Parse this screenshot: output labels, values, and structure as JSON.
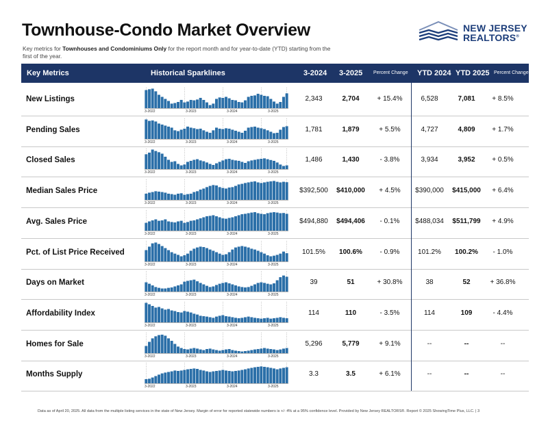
{
  "header": {
    "title": "Townhouse-Condo Market Overview",
    "subtitle_pre": "Key metrics for ",
    "subtitle_bold": "Townhouses and Condominiums Only",
    "subtitle_post": " for the report month and for year-to-date (YTD) starting from the first of the year."
  },
  "logo": {
    "line1": "NEW JERSEY",
    "line2": "REALTORS",
    "mark": "®"
  },
  "table_header": {
    "key_metrics": "Key Metrics",
    "sparklines": "Historical Sparklines",
    "col_prev": "3-2024",
    "col_curr": "3-2025",
    "pct": "Percent Change",
    "ytd_prev": "YTD 2024",
    "ytd_curr": "YTD 2025",
    "pct_ytd": "Percent Change"
  },
  "spark_ticks": [
    "3-2022",
    "3-2023",
    "3-2024",
    "3-2025"
  ],
  "colors": {
    "header_bg": "#1d3566",
    "bar": "#2b6fa8",
    "divider": "#1d3566"
  },
  "rows": [
    {
      "name": "New Listings",
      "prev": "2,343",
      "curr": "2,704",
      "pct": "+ 15.4%",
      "ytd_prev": "6,528",
      "ytd_curr": "7,081",
      "ytd_pct": "+ 8.5%",
      "spark": [
        88,
        92,
        95,
        82,
        65,
        55,
        45,
        35,
        22,
        25,
        30,
        40,
        28,
        32,
        40,
        38,
        42,
        50,
        40,
        28,
        15,
        22,
        45,
        52,
        50,
        55,
        48,
        40,
        38,
        30,
        28,
        38,
        55,
        60,
        62,
        70,
        65,
        60,
        58,
        45,
        32,
        22,
        30,
        55,
        72
      ]
    },
    {
      "name": "Pending Sales",
      "prev": "1,781",
      "curr": "1,879",
      "pct": "+ 5.5%",
      "ytd_prev": "4,727",
      "ytd_curr": "4,809",
      "ytd_pct": "+ 1.7%",
      "spark": [
        95,
        88,
        90,
        85,
        75,
        70,
        65,
        60,
        55,
        42,
        38,
        45,
        50,
        60,
        55,
        52,
        48,
        50,
        42,
        35,
        30,
        42,
        55,
        50,
        48,
        52,
        50,
        45,
        40,
        35,
        30,
        40,
        55,
        58,
        60,
        55,
        52,
        48,
        42,
        35,
        28,
        30,
        45,
        58,
        62
      ]
    },
    {
      "name": "Closed Sales",
      "prev": "1,486",
      "curr": "1,430",
      "pct": "- 3.8%",
      "ytd_prev": "3,934",
      "ytd_curr": "3,952",
      "ytd_pct": "+ 0.5%",
      "spark": [
        72,
        80,
        95,
        88,
        82,
        75,
        60,
        45,
        35,
        38,
        25,
        18,
        22,
        35,
        40,
        45,
        48,
        42,
        38,
        32,
        25,
        20,
        28,
        35,
        42,
        48,
        50,
        45,
        42,
        40,
        35,
        30,
        38,
        42,
        45,
        48,
        50,
        52,
        48,
        44,
        40,
        32,
        22,
        15,
        18
      ]
    },
    {
      "name": "Median Sales Price",
      "prev": "$392,500",
      "curr": "$410,000",
      "pct": "+ 4.5%",
      "ytd_prev": "$390,000",
      "ytd_curr": "$415,000",
      "ytd_pct": "+ 6.4%",
      "spark": [
        30,
        35,
        38,
        42,
        40,
        38,
        35,
        30,
        28,
        25,
        30,
        32,
        25,
        28,
        30,
        38,
        42,
        50,
        55,
        62,
        68,
        72,
        70,
        62,
        58,
        55,
        60,
        62,
        68,
        75,
        78,
        82,
        85,
        88,
        90,
        85,
        82,
        85,
        88,
        90,
        92,
        88,
        85,
        88,
        86
      ]
    },
    {
      "name": "Avg. Sales Price",
      "prev": "$494,880",
      "curr": "$494,406",
      "pct": "- 0.1%",
      "ytd_prev": "$488,034",
      "ytd_curr": "$511,799",
      "ytd_pct": "+ 4.9%",
      "spark": [
        38,
        45,
        50,
        55,
        48,
        50,
        55,
        45,
        42,
        40,
        45,
        48,
        38,
        42,
        48,
        50,
        55,
        60,
        65,
        70,
        72,
        75,
        70,
        65,
        60,
        58,
        62,
        65,
        70,
        75,
        80,
        82,
        85,
        88,
        90,
        85,
        82,
        80,
        85,
        88,
        90,
        88,
        85,
        86,
        82
      ]
    },
    {
      "name": "Pct. of List Price Received",
      "prev": "101.5%",
      "curr": "100.6%",
      "pct": "- 0.9%",
      "ytd_prev": "101.2%",
      "ytd_curr": "100.2%",
      "ytd_pct": "- 1.0%",
      "spark": [
        55,
        72,
        88,
        92,
        85,
        75,
        65,
        55,
        45,
        38,
        32,
        25,
        30,
        38,
        52,
        62,
        68,
        72,
        70,
        65,
        58,
        52,
        45,
        38,
        32,
        35,
        45,
        58,
        68,
        72,
        75,
        72,
        68,
        62,
        58,
        52,
        45,
        38,
        30,
        25,
        28,
        32,
        38,
        48,
        40
      ]
    },
    {
      "name": "Days on Market",
      "prev": "39",
      "curr": "51",
      "pct": "+ 30.8%",
      "ytd_prev": "38",
      "ytd_curr": "52",
      "ytd_pct": "+ 36.8%",
      "spark": [
        45,
        38,
        30,
        22,
        18,
        15,
        15,
        18,
        20,
        25,
        30,
        35,
        48,
        52,
        55,
        58,
        50,
        42,
        35,
        28,
        22,
        25,
        32,
        38,
        42,
        45,
        40,
        35,
        30,
        25,
        22,
        20,
        22,
        28,
        35,
        42,
        45,
        42,
        38,
        35,
        40,
        55,
        70,
        78,
        72
      ]
    },
    {
      "name": "Affordability Index",
      "prev": "114",
      "curr": "110",
      "pct": "- 3.5%",
      "ytd_prev": "114",
      "ytd_curr": "109",
      "ytd_pct": "- 4.4%",
      "spark": [
        95,
        88,
        80,
        72,
        75,
        68,
        62,
        65,
        58,
        55,
        50,
        48,
        55,
        52,
        48,
        42,
        38,
        32,
        30,
        28,
        25,
        22,
        28,
        32,
        35,
        30,
        28,
        25,
        22,
        20,
        22,
        25,
        28,
        25,
        22,
        20,
        18,
        20,
        22,
        18,
        20,
        22,
        25,
        22,
        20
      ]
    },
    {
      "name": "Homes for Sale",
      "prev": "5,296",
      "curr": "5,779",
      "pct": "+ 9.1%",
      "ytd_prev": "--",
      "ytd_curr": "--",
      "ytd_pct": "--",
      "spark": [
        35,
        55,
        72,
        82,
        88,
        90,
        85,
        72,
        60,
        45,
        32,
        25,
        20,
        18,
        22,
        25,
        22,
        18,
        15,
        20,
        22,
        18,
        15,
        12,
        15,
        18,
        20,
        15,
        12,
        10,
        8,
        10,
        12,
        15,
        18,
        20,
        22,
        25,
        22,
        20,
        18,
        15,
        18,
        22,
        25
      ]
    },
    {
      "name": "Months Supply",
      "prev": "3.3",
      "curr": "3.5",
      "pct": "+ 6.1%",
      "ytd_prev": "--",
      "ytd_curr": "--",
      "ytd_pct": "--",
      "spark": [
        20,
        22,
        28,
        35,
        42,
        48,
        52,
        55,
        58,
        62,
        60,
        62,
        65,
        68,
        70,
        72,
        70,
        65,
        62,
        58,
        55,
        58,
        60,
        62,
        65,
        62,
        60,
        58,
        60,
        62,
        65,
        68,
        72,
        75,
        78,
        80,
        82,
        80,
        78,
        75,
        72,
        68,
        72,
        75,
        78
      ]
    }
  ],
  "footer": "Data as of April 20, 2025. All data from the multiple listing services in the state of New Jersey. Margin of error for reported statewide numbers is +/- 4% at a 95% confidence level. Provided by New Jersey REALTORS®. Report © 2025 ShowingTime Plus, LLC.  |  3"
}
